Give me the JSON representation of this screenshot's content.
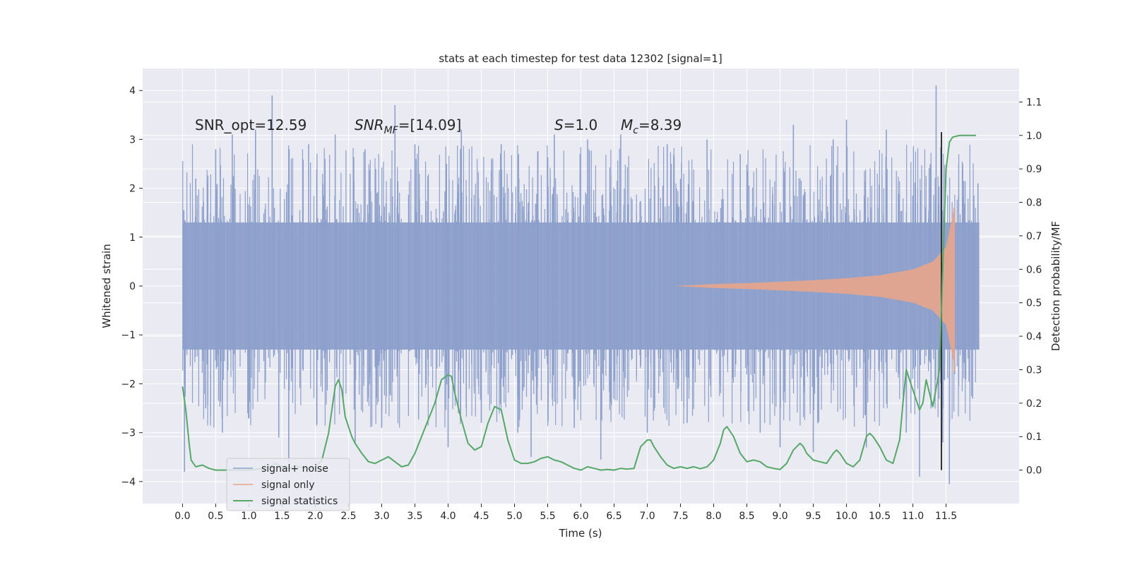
{
  "chart_data": {
    "type": "line",
    "title": "stats at each timestep for test data 12302 [signal=1]",
    "xlabel": "Time (s)",
    "ylabel": "Whitened strain",
    "y2label": "Detection probability/MF",
    "xlim": [
      -0.6,
      12.6
    ],
    "ylim": [
      -4.45,
      4.45
    ],
    "y2lim": [
      -0.1,
      1.2
    ],
    "x_ticks": [
      0.0,
      0.5,
      1.0,
      1.5,
      2.0,
      2.5,
      3.0,
      3.5,
      4.0,
      4.5,
      5.0,
      5.5,
      6.0,
      6.5,
      7.0,
      7.5,
      8.0,
      8.5,
      9.0,
      9.5,
      10.0,
      10.5,
      11.0,
      11.5
    ],
    "x_tick_labels": [
      "0.0",
      "0.5",
      "1.0",
      "1.5",
      "2.0",
      "2.5",
      "3.0",
      "3.5",
      "4.0",
      "4.5",
      "5.0",
      "5.5",
      "6.0",
      "6.5",
      "7.0",
      "7.5",
      "8.0",
      "8.5",
      "9.0",
      "9.5",
      "10.0",
      "10.5",
      "11.0",
      "11.5"
    ],
    "y_ticks": [
      4,
      3,
      2,
      1,
      0,
      -1,
      -2,
      -3,
      -4
    ],
    "y_tick_labels": [
      "4",
      "3",
      "2",
      "1",
      "0",
      "−1",
      "−2",
      "−3",
      "−4"
    ],
    "y2_ticks": [
      1.1,
      1.0,
      0.9,
      0.8,
      0.7,
      0.6,
      0.5,
      0.4,
      0.3,
      0.2,
      0.1,
      0.0
    ],
    "y2_tick_labels": [
      "1.1",
      "1.0",
      "0.9",
      "0.8",
      "0.7",
      "0.6",
      "0.5",
      "0.4",
      "0.3",
      "0.2",
      "0.1",
      "0.0"
    ],
    "grid": true,
    "legend": {
      "position": "lower-left",
      "entries": [
        {
          "label": "signal+ noise",
          "color": "#8da0cb"
        },
        {
          "label": "signal only",
          "color": "#e8a58b"
        },
        {
          "label": "signal statistics",
          "color": "#55a868"
        }
      ]
    },
    "annotations": {
      "snr_opt": "SNR_opt=12.59",
      "snr_mf_main": "SNR",
      "snr_mf_sub": "MF",
      "snr_mf_value": "=[14.09]",
      "s_main": "S",
      "s_value": "=1.0",
      "mc_main": "M",
      "mc_sub": "c",
      "mc_value": "=8.39"
    },
    "noise_series": {
      "name": "signal+ noise",
      "x_range": [
        0.0,
        12.0
      ],
      "dense_envelope": [
        -1.3,
        1.3
      ],
      "spike_extremes": [
        {
          "x": 0.02,
          "y": 1.55
        },
        {
          "x": 0.03,
          "y": -3.8
        },
        {
          "x": 0.2,
          "y": 2.2
        },
        {
          "x": 0.35,
          "y": -2.5
        },
        {
          "x": 0.5,
          "y": 2.8
        },
        {
          "x": 0.6,
          "y": -3.0
        },
        {
          "x": 0.75,
          "y": 3.1
        },
        {
          "x": 1.0,
          "y": -2.7
        },
        {
          "x": 1.1,
          "y": 3.2
        },
        {
          "x": 1.35,
          "y": 3.9
        },
        {
          "x": 1.45,
          "y": -3.1
        },
        {
          "x": 1.6,
          "y": -3.6
        },
        {
          "x": 1.9,
          "y": 2.9
        },
        {
          "x": 2.3,
          "y": 3.1
        },
        {
          "x": 2.6,
          "y": -3.2
        },
        {
          "x": 2.75,
          "y": 2.8
        },
        {
          "x": 3.0,
          "y": -2.9
        },
        {
          "x": 3.2,
          "y": 3.7
        },
        {
          "x": 3.5,
          "y": 2.9
        },
        {
          "x": 4.0,
          "y": -3.3
        },
        {
          "x": 4.2,
          "y": 3.2
        },
        {
          "x": 4.5,
          "y": -2.8
        },
        {
          "x": 4.8,
          "y": 2.9
        },
        {
          "x": 5.05,
          "y": -3.0
        },
        {
          "x": 5.25,
          "y": -3.5
        },
        {
          "x": 5.6,
          "y": 3.1
        },
        {
          "x": 5.9,
          "y": -2.9
        },
        {
          "x": 6.1,
          "y": 3.0
        },
        {
          "x": 6.3,
          "y": -3.55
        },
        {
          "x": 6.6,
          "y": 3.1
        },
        {
          "x": 7.0,
          "y": -3.0
        },
        {
          "x": 7.3,
          "y": 2.9
        },
        {
          "x": 7.6,
          "y": -2.8
        },
        {
          "x": 7.9,
          "y": 3.0
        },
        {
          "x": 8.4,
          "y": 2.7
        },
        {
          "x": 8.7,
          "y": -3.0
        },
        {
          "x": 9.0,
          "y": -3.3
        },
        {
          "x": 9.2,
          "y": 3.3
        },
        {
          "x": 9.5,
          "y": -3.4
        },
        {
          "x": 9.8,
          "y": 3.0
        },
        {
          "x": 10.0,
          "y": 3.4
        },
        {
          "x": 10.3,
          "y": -3.3
        },
        {
          "x": 10.6,
          "y": 3.2
        },
        {
          "x": 10.9,
          "y": -3.0
        },
        {
          "x": 11.1,
          "y": -3.9
        },
        {
          "x": 11.35,
          "y": 4.1
        },
        {
          "x": 11.45,
          "y": -3.2
        },
        {
          "x": 11.55,
          "y": -4.05
        },
        {
          "x": 11.75,
          "y": 2.5
        },
        {
          "x": 11.9,
          "y": -2.3
        },
        {
          "x": 11.98,
          "y": 2.1
        }
      ]
    },
    "signal_series": {
      "name": "signal only",
      "x_range": [
        7.4,
        11.65
      ],
      "envelope": [
        {
          "x": 7.4,
          "amp": 0.0
        },
        {
          "x": 8.0,
          "amp": 0.04
        },
        {
          "x": 8.5,
          "amp": 0.06
        },
        {
          "x": 9.0,
          "amp": 0.09
        },
        {
          "x": 9.5,
          "amp": 0.12
        },
        {
          "x": 10.0,
          "amp": 0.16
        },
        {
          "x": 10.5,
          "amp": 0.22
        },
        {
          "x": 11.0,
          "amp": 0.34
        },
        {
          "x": 11.3,
          "amp": 0.5
        },
        {
          "x": 11.5,
          "amp": 0.8
        },
        {
          "x": 11.62,
          "amp": 1.6
        }
      ],
      "min": -1.75,
      "max": 1.6
    },
    "statistics_series": {
      "name": "signal statistics",
      "axis": "right",
      "x": [
        0.0,
        0.05,
        0.1,
        0.13,
        0.2,
        0.3,
        0.4,
        0.5,
        0.6,
        0.7,
        0.8,
        0.9,
        1.0,
        1.1,
        1.2,
        1.3,
        1.4,
        1.5,
        1.6,
        1.7,
        1.8,
        1.9,
        2.0,
        2.1,
        2.2,
        2.3,
        2.35,
        2.4,
        2.45,
        2.5,
        2.55,
        2.6,
        2.7,
        2.8,
        2.9,
        3.0,
        3.1,
        3.2,
        3.3,
        3.4,
        3.5,
        3.6,
        3.7,
        3.8,
        3.9,
        4.0,
        4.05,
        4.1,
        4.2,
        4.3,
        4.4,
        4.5,
        4.6,
        4.7,
        4.8,
        4.9,
        5.0,
        5.1,
        5.2,
        5.3,
        5.4,
        5.5,
        5.6,
        5.7,
        5.8,
        5.9,
        6.0,
        6.1,
        6.2,
        6.3,
        6.4,
        6.5,
        6.6,
        6.7,
        6.8,
        6.9,
        7.0,
        7.05,
        7.1,
        7.2,
        7.3,
        7.4,
        7.5,
        7.6,
        7.7,
        7.8,
        7.9,
        8.0,
        8.1,
        8.15,
        8.2,
        8.3,
        8.4,
        8.5,
        8.6,
        8.7,
        8.8,
        8.9,
        9.0,
        9.1,
        9.2,
        9.3,
        9.35,
        9.4,
        9.5,
        9.6,
        9.7,
        9.8,
        9.85,
        9.9,
        10.0,
        10.1,
        10.2,
        10.3,
        10.35,
        10.4,
        10.5,
        10.6,
        10.7,
        10.8,
        10.85,
        10.9,
        11.0,
        11.1,
        11.15,
        11.2,
        11.3,
        11.4,
        11.45,
        11.5,
        11.55,
        11.6,
        11.7,
        11.8,
        11.9,
        11.95
      ],
      "y": [
        0.25,
        0.18,
        0.08,
        0.03,
        0.01,
        0.015,
        0.005,
        0.0,
        0.0,
        0.0,
        0.0,
        0.0,
        0.0,
        0.002,
        0.005,
        0.01,
        0.02,
        0.01,
        0.005,
        0.012,
        0.008,
        0.005,
        0.008,
        0.03,
        0.11,
        0.25,
        0.27,
        0.24,
        0.16,
        0.13,
        0.1,
        0.08,
        0.05,
        0.025,
        0.02,
        0.03,
        0.04,
        0.025,
        0.01,
        0.015,
        0.05,
        0.1,
        0.15,
        0.2,
        0.27,
        0.285,
        0.28,
        0.23,
        0.15,
        0.08,
        0.06,
        0.07,
        0.14,
        0.19,
        0.18,
        0.09,
        0.03,
        0.02,
        0.02,
        0.025,
        0.035,
        0.04,
        0.03,
        0.025,
        0.015,
        0.005,
        0.0,
        0.01,
        0.005,
        0.0,
        0.002,
        0.0,
        0.005,
        0.003,
        0.005,
        0.07,
        0.09,
        0.09,
        0.07,
        0.04,
        0.015,
        0.005,
        0.01,
        0.005,
        0.01,
        0.004,
        0.01,
        0.03,
        0.08,
        0.12,
        0.13,
        0.1,
        0.05,
        0.025,
        0.03,
        0.025,
        0.01,
        0.005,
        0.002,
        0.02,
        0.06,
        0.08,
        0.07,
        0.05,
        0.03,
        0.025,
        0.02,
        0.05,
        0.06,
        0.05,
        0.02,
        0.01,
        0.03,
        0.1,
        0.11,
        0.1,
        0.07,
        0.03,
        0.02,
        0.09,
        0.2,
        0.3,
        0.24,
        0.18,
        0.2,
        0.27,
        0.19,
        0.3,
        0.6,
        0.9,
        0.98,
        0.995,
        1.0,
        1.0,
        1.0,
        1.0
      ]
    },
    "vertical_marker": {
      "x": 11.43,
      "color": "#333333"
    }
  }
}
